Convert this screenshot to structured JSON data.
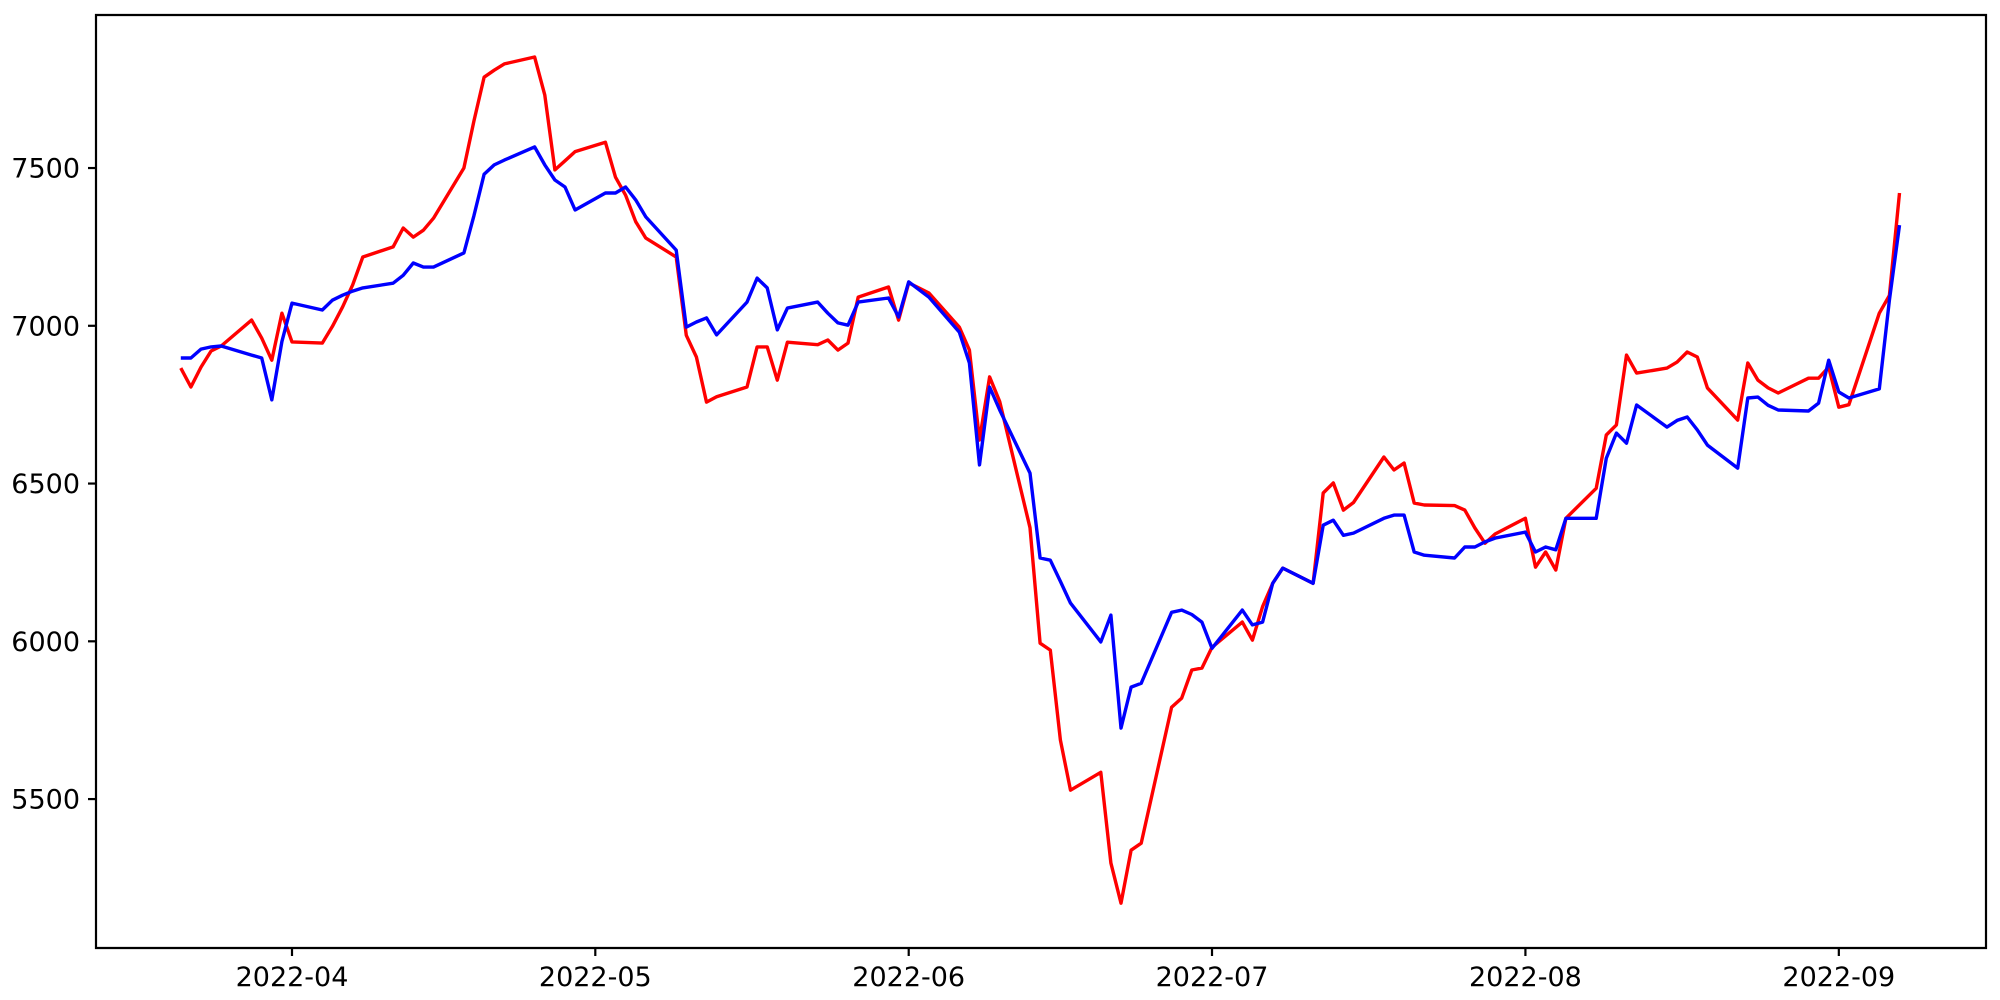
{
  "figure": {
    "background": "#ffffff",
    "axes_color": "#000000"
  },
  "chart_data": {
    "type": "line",
    "title": "",
    "xlabel": "",
    "ylabel": "",
    "grid": false,
    "legend": null,
    "ylim": [
      5028,
      7985
    ],
    "y_ticks": [
      5500,
      6000,
      6500,
      7000,
      7500
    ],
    "x_tick_labels": [
      "2022-04",
      "2022-05",
      "2022-06",
      "2022-07",
      "2022-08",
      "2022-09"
    ],
    "x": [
      "2022-03-21",
      "2022-03-22",
      "2022-03-23",
      "2022-03-24",
      "2022-03-25",
      "2022-03-28",
      "2022-03-29",
      "2022-03-30",
      "2022-03-31",
      "2022-04-01",
      "2022-04-04",
      "2022-04-05",
      "2022-04-06",
      "2022-04-07",
      "2022-04-08",
      "2022-04-11",
      "2022-04-12",
      "2022-04-13",
      "2022-04-14",
      "2022-04-15",
      "2022-04-18",
      "2022-04-19",
      "2022-04-20",
      "2022-04-21",
      "2022-04-22",
      "2022-04-25",
      "2022-04-26",
      "2022-04-27",
      "2022-04-28",
      "2022-04-29",
      "2022-05-02",
      "2022-05-03",
      "2022-05-04",
      "2022-05-05",
      "2022-05-06",
      "2022-05-09",
      "2022-05-10",
      "2022-05-11",
      "2022-05-12",
      "2022-05-13",
      "2022-05-16",
      "2022-05-17",
      "2022-05-18",
      "2022-05-19",
      "2022-05-20",
      "2022-05-23",
      "2022-05-24",
      "2022-05-25",
      "2022-05-26",
      "2022-05-27",
      "2022-05-30",
      "2022-05-31",
      "2022-06-01",
      "2022-06-02",
      "2022-06-03",
      "2022-06-06",
      "2022-06-07",
      "2022-06-08",
      "2022-06-09",
      "2022-06-10",
      "2022-06-13",
      "2022-06-14",
      "2022-06-15",
      "2022-06-16",
      "2022-06-17",
      "2022-06-20",
      "2022-06-21",
      "2022-06-22",
      "2022-06-23",
      "2022-06-24",
      "2022-06-27",
      "2022-06-28",
      "2022-06-29",
      "2022-06-30",
      "2022-07-01",
      "2022-07-04",
      "2022-07-05",
      "2022-07-06",
      "2022-07-07",
      "2022-07-08",
      "2022-07-11",
      "2022-07-12",
      "2022-07-13",
      "2022-07-14",
      "2022-07-15",
      "2022-07-18",
      "2022-07-19",
      "2022-07-20",
      "2022-07-21",
      "2022-07-22",
      "2022-07-25",
      "2022-07-26",
      "2022-07-27",
      "2022-07-28",
      "2022-07-29",
      "2022-08-01",
      "2022-08-02",
      "2022-08-03",
      "2022-08-04",
      "2022-08-05",
      "2022-08-08",
      "2022-08-09",
      "2022-08-10",
      "2022-08-11",
      "2022-08-12",
      "2022-08-15",
      "2022-08-16",
      "2022-08-17",
      "2022-08-18",
      "2022-08-19",
      "2022-08-22",
      "2022-08-23",
      "2022-08-24",
      "2022-08-25",
      "2022-08-26",
      "2022-08-29",
      "2022-08-30",
      "2022-08-31",
      "2022-09-01",
      "2022-09-02",
      "2022-09-05",
      "2022-09-06",
      "2022-09-07"
    ],
    "series": [
      {
        "name": "red",
        "color": "#ff0000",
        "values": [
          6866,
          6806,
          6869,
          6920,
          6936,
          7018,
          6961,
          6891,
          7040,
          6949,
          6945,
          6998,
          7060,
          7130,
          7218,
          7250,
          7310,
          7281,
          7303,
          7341,
          7500,
          7650,
          7788,
          7810,
          7830,
          7852,
          7731,
          7494,
          7523,
          7552,
          7582,
          7471,
          7414,
          7330,
          7278,
          7218,
          6970,
          6901,
          6758,
          6775,
          6806,
          6933,
          6933,
          6828,
          6948,
          6940,
          6955,
          6923,
          6945,
          7091,
          7123,
          7018,
          7136,
          7120,
          7104,
          6996,
          6923,
          6638,
          6838,
          6760,
          6360,
          5994,
          5972,
          5687,
          5528,
          5585,
          5297,
          5170,
          5338,
          5360,
          5791,
          5820,
          5909,
          5915,
          5981,
          6061,
          6004,
          6110,
          6184,
          6232,
          6184,
          6470,
          6502,
          6416,
          6440,
          6584,
          6543,
          6565,
          6438,
          6432,
          6430,
          6416,
          6359,
          6311,
          6340,
          6390,
          6235,
          6283,
          6226,
          6390,
          6485,
          6654,
          6686,
          6907,
          6850,
          6866,
          6885,
          6917,
          6901,
          6803,
          6701,
          6882,
          6828,
          6803,
          6787,
          6834,
          6834,
          6869,
          6742,
          6750,
          7040,
          7096,
          7421
        ]
      },
      {
        "name": "blue",
        "color": "#0000ff",
        "values": [
          6898,
          6898,
          6926,
          6933,
          6936,
          6907,
          6898,
          6765,
          6950,
          7072,
          7050,
          7081,
          7097,
          7110,
          7120,
          7135,
          7160,
          7199,
          7186,
          7186,
          7231,
          7350,
          7480,
          7510,
          7525,
          7567,
          7510,
          7462,
          7440,
          7367,
          7421,
          7421,
          7440,
          7399,
          7345,
          7240,
          6996,
          7012,
          7025,
          6971,
          7075,
          7151,
          7120,
          6987,
          7056,
          7075,
          7040,
          7009,
          7002,
          7075,
          7088,
          7028,
          7139,
          7115,
          7091,
          6980,
          6882,
          6559,
          6806,
          6733,
          6533,
          6264,
          6257,
          6190,
          6121,
          5998,
          6083,
          5725,
          5855,
          5867,
          6092,
          6099,
          6085,
          6061,
          5978,
          6099,
          6052,
          6061,
          6184,
          6232,
          6184,
          6368,
          6384,
          6336,
          6343,
          6390,
          6400,
          6400,
          6283,
          6273,
          6264,
          6299,
          6299,
          6315,
          6327,
          6346,
          6283,
          6299,
          6290,
          6390,
          6390,
          6580,
          6660,
          6628,
          6749,
          6679,
          6700,
          6711,
          6670,
          6622,
          6549,
          6771,
          6774,
          6748,
          6733,
          6730,
          6755,
          6891,
          6790,
          6771,
          6800,
          7081,
          7319
        ]
      }
    ]
  }
}
